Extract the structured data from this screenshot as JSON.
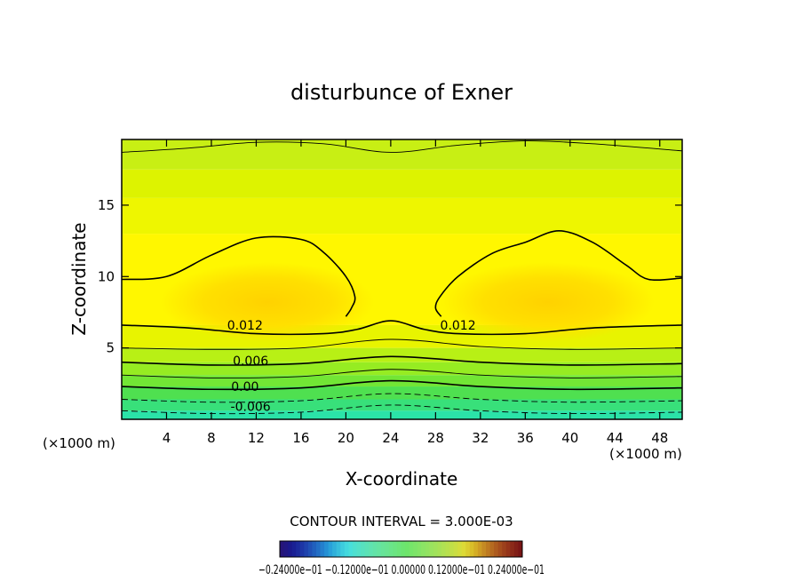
{
  "chart_data": {
    "type": "contour",
    "title": "disturbunce of Exner",
    "xlabel": "X-coordinate",
    "ylabel": "Z-coordinate",
    "x_unit_label": "(×1000 m)",
    "y_unit_label": "(×1000 m)",
    "xlim": [
      0,
      50
    ],
    "ylim": [
      0,
      19.6
    ],
    "x_ticks": [
      4,
      8,
      12,
      16,
      20,
      24,
      28,
      32,
      36,
      40,
      44,
      48
    ],
    "y_ticks": [
      5,
      10,
      15
    ],
    "contour_interval_text": "CONTOUR INTERVAL = 3.000E-03",
    "contour_labels": [
      {
        "text": "0.012",
        "x": 11.0,
        "z": 6.3
      },
      {
        "text": "0.012",
        "x": 30.0,
        "z": 6.3
      },
      {
        "text": "0.006",
        "x": 11.5,
        "z": 3.8
      },
      {
        "text": "0.00",
        "x": 11.0,
        "z": 2.0
      },
      {
        "text": "-0.006",
        "x": 11.5,
        "z": 0.6
      }
    ],
    "contours": [
      {
        "level": 0.012,
        "style": "thick",
        "points": [
          [
            0,
            6.6
          ],
          [
            6,
            6.4
          ],
          [
            12,
            6.0
          ],
          [
            18,
            6.0
          ],
          [
            21,
            6.3
          ],
          [
            24,
            6.9
          ],
          [
            27,
            6.3
          ],
          [
            30,
            6.0
          ],
          [
            36,
            6.0
          ],
          [
            42,
            6.4
          ],
          [
            50,
            6.6
          ]
        ]
      },
      {
        "level": 0.012,
        "style": "thick",
        "points": [
          [
            0,
            9.8
          ],
          [
            4,
            10.0
          ],
          [
            8,
            11.5
          ],
          [
            12,
            12.7
          ],
          [
            16,
            12.6
          ],
          [
            18,
            11.7
          ],
          [
            20,
            10.0
          ],
          [
            20.8,
            8.6
          ],
          [
            20.5,
            7.8
          ],
          [
            20,
            7.2
          ]
        ]
      },
      {
        "level": 0.012,
        "style": "thick",
        "points": [
          [
            28.5,
            7.2
          ],
          [
            28,
            7.8
          ],
          [
            28.4,
            8.6
          ],
          [
            30,
            10.0
          ],
          [
            33,
            11.6
          ],
          [
            36,
            12.4
          ],
          [
            39,
            13.2
          ],
          [
            42,
            12.4
          ],
          [
            45,
            10.8
          ],
          [
            47,
            9.8
          ],
          [
            50,
            9.9
          ]
        ]
      },
      {
        "level": 0.018,
        "style": "thin",
        "points": [
          [
            0,
            18.7
          ],
          [
            6,
            19.0
          ],
          [
            12,
            19.4
          ],
          [
            18,
            19.3
          ],
          [
            24,
            18.7
          ],
          [
            30,
            19.2
          ],
          [
            36,
            19.5
          ],
          [
            42,
            19.3
          ],
          [
            50,
            18.8
          ]
        ]
      },
      {
        "level": 0.009,
        "style": "thin",
        "points": [
          [
            0,
            5.0
          ],
          [
            8,
            4.9
          ],
          [
            16,
            5.0
          ],
          [
            24,
            5.6
          ],
          [
            32,
            5.1
          ],
          [
            40,
            4.9
          ],
          [
            50,
            5.0
          ]
        ]
      },
      {
        "level": 0.006,
        "style": "thick",
        "points": [
          [
            0,
            4.0
          ],
          [
            8,
            3.8
          ],
          [
            16,
            3.9
          ],
          [
            24,
            4.4
          ],
          [
            32,
            4.0
          ],
          [
            40,
            3.8
          ],
          [
            50,
            3.9
          ]
        ]
      },
      {
        "level": 0.003,
        "style": "thin",
        "points": [
          [
            0,
            3.1
          ],
          [
            8,
            2.9
          ],
          [
            16,
            3.0
          ],
          [
            24,
            3.5
          ],
          [
            32,
            3.1
          ],
          [
            40,
            2.9
          ],
          [
            50,
            3.0
          ]
        ]
      },
      {
        "level": 0.0,
        "style": "thick",
        "points": [
          [
            0,
            2.3
          ],
          [
            8,
            2.1
          ],
          [
            16,
            2.2
          ],
          [
            24,
            2.7
          ],
          [
            32,
            2.3
          ],
          [
            40,
            2.1
          ],
          [
            50,
            2.2
          ]
        ]
      },
      {
        "level": -0.003,
        "style": "dashed",
        "points": [
          [
            0,
            1.4
          ],
          [
            8,
            1.2
          ],
          [
            16,
            1.3
          ],
          [
            24,
            1.8
          ],
          [
            32,
            1.4
          ],
          [
            40,
            1.2
          ],
          [
            50,
            1.3
          ]
        ]
      },
      {
        "level": -0.006,
        "style": "dashed",
        "points": [
          [
            0,
            0.6
          ],
          [
            8,
            0.4
          ],
          [
            16,
            0.5
          ],
          [
            24,
            1.0
          ],
          [
            32,
            0.6
          ],
          [
            40,
            0.4
          ],
          [
            50,
            0.5
          ]
        ]
      }
    ],
    "fill_bands": [
      {
        "z0": 0,
        "z1": 0.6,
        "color": "#2be3a8"
      },
      {
        "z0": 0.6,
        "z1": 1.4,
        "color": "#38e07a"
      },
      {
        "z0": 1.4,
        "z1": 2.3,
        "color": "#4fe050"
      },
      {
        "z0": 2.3,
        "z1": 3.1,
        "color": "#72e635"
      },
      {
        "z0": 3.1,
        "z1": 4.0,
        "color": "#96ec22"
      },
      {
        "z0": 4.0,
        "z1": 5.0,
        "color": "#b8f015"
      },
      {
        "z0": 5.0,
        "z1": 6.6,
        "color": "#e8f400"
      },
      {
        "z0": 6.6,
        "z1": 13.0,
        "color": "#fff700"
      },
      {
        "z0": 13.0,
        "z1": 15.5,
        "color": "#eef600"
      },
      {
        "z0": 15.5,
        "z1": 17.5,
        "color": "#ddf300"
      },
      {
        "z0": 17.5,
        "z1": 19.6,
        "color": "#c8ef14"
      }
    ],
    "colorbar_labels_text": "−0.24000e−01  −0.12000e−01  0.00000  0.12000e−01  0.24000e−01"
  }
}
